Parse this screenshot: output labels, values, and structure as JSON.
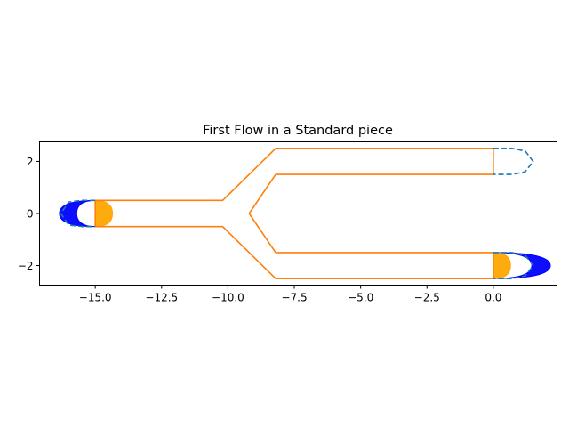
{
  "chart_data": {
    "type": "line",
    "title": "First Flow in a Standard piece",
    "xlabel": "",
    "ylabel": "",
    "xlim": [
      -17.1,
      2.4
    ],
    "ylim": [
      -2.75,
      2.75
    ],
    "grid": false,
    "x_ticks": [
      -15.0,
      -12.5,
      -10.0,
      -7.5,
      -5.0,
      -2.5,
      0.0
    ],
    "x_tick_labels": [
      "−15.0",
      "−12.5",
      "−10.0",
      "−7.5",
      "−5.0",
      "−2.5",
      "0.0"
    ],
    "y_ticks": [
      2,
      0,
      -2
    ],
    "y_tick_labels": [
      "2",
      "0",
      "−2"
    ],
    "colors": {
      "channel_wall": "#ff7f0e",
      "boundary_dashed": "#1f77b4",
      "velocity_profile_outer": "#0000ff",
      "velocity_profile_inner": "#ffa500"
    },
    "series": [
      {
        "role": "channel-wall-outer-upper",
        "style": "solid",
        "x": [
          -15.0,
          -10.2,
          -8.2,
          0.0,
          0.0,
          -8.2,
          -9.2
        ],
        "y": [
          0.5,
          0.5,
          2.5,
          2.5,
          1.5,
          1.5,
          0.0
        ]
      },
      {
        "role": "channel-wall-outer-lower",
        "style": "solid",
        "x": [
          -15.0,
          -10.2,
          -8.2,
          0.0
        ],
        "y": [
          -0.5,
          -0.5,
          -2.5,
          -2.5
        ]
      },
      {
        "role": "channel-wall-inner-lower",
        "style": "solid",
        "x": [
          -9.2,
          -8.2,
          0.0,
          0.0
        ],
        "y": [
          0.0,
          -1.5,
          -1.5,
          -2.5
        ]
      },
      {
        "role": "inlet-wall",
        "style": "solid",
        "x": [
          -15.0,
          -15.0
        ],
        "y": [
          0.5,
          -0.5
        ]
      },
      {
        "role": "dashed-cap-inlet",
        "style": "dashed",
        "x": [
          -15.0,
          -15.5,
          -16.0,
          -16.3,
          -16.0,
          -15.5,
          -15.0
        ],
        "y": [
          0.5,
          0.5,
          0.44,
          0.0,
          -0.44,
          -0.5,
          -0.5
        ]
      },
      {
        "role": "dashed-cap-upper-outlet",
        "style": "dashed",
        "x": [
          0.0,
          0.7,
          1.2,
          1.5,
          1.2,
          0.7,
          0.0
        ],
        "y": [
          2.5,
          2.5,
          2.4,
          2.0,
          1.6,
          1.5,
          1.5
        ]
      },
      {
        "role": "dashed-cap-lower-outlet",
        "style": "dashed",
        "x": [
          0.0,
          0.7,
          1.2,
          1.5,
          1.2,
          0.7,
          0.0
        ],
        "y": [
          -1.5,
          -1.5,
          -1.6,
          -2.0,
          -2.4,
          -2.5,
          -2.5
        ]
      }
    ],
    "profiles": [
      {
        "role": "inlet-profile-blue",
        "color": "#0000ff",
        "base_x": -15.0,
        "y_center": 0.0,
        "half_width": 0.5,
        "peak_dx": -1.35,
        "inner_dx": -0.7
      },
      {
        "role": "inlet-profile-orange",
        "color": "#ffa500",
        "base_x": -15.0,
        "y_center": 0.0,
        "half_width": 0.5,
        "peak_dx": 0.65,
        "inner_dx": 0.0
      },
      {
        "role": "outlet-profile-blue",
        "color": "#0000ff",
        "base_x": 0.0,
        "y_center": -2.0,
        "half_width": 0.5,
        "peak_dx": 2.15,
        "inner_dx": 1.45
      },
      {
        "role": "outlet-profile-orange",
        "color": "#ffa500",
        "base_x": 0.0,
        "y_center": -2.0,
        "half_width": 0.5,
        "peak_dx": 0.65,
        "inner_dx": 0.0
      }
    ]
  }
}
